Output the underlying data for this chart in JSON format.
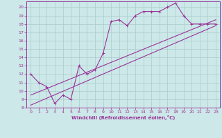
{
  "xlabel": "Windchill (Refroidissement éolien,°C)",
  "bg_color": "#cce8e8",
  "grid_color": "#aacccc",
  "line_color": "#993399",
  "xlim": [
    -0.5,
    23.5
  ],
  "ylim": [
    8,
    20.7
  ],
  "xticks": [
    0,
    1,
    2,
    3,
    4,
    5,
    6,
    7,
    8,
    9,
    10,
    11,
    12,
    13,
    14,
    15,
    16,
    17,
    18,
    19,
    20,
    21,
    22,
    23
  ],
  "yticks": [
    8,
    9,
    10,
    11,
    12,
    13,
    14,
    15,
    16,
    17,
    18,
    19,
    20
  ],
  "line1_x": [
    0,
    1,
    2,
    3,
    4,
    5,
    6,
    7,
    8,
    9,
    10,
    11,
    12,
    13,
    14,
    15,
    16,
    17,
    18,
    19,
    20,
    21,
    22,
    23
  ],
  "line1_y": [
    12,
    11,
    10.5,
    8.5,
    9.5,
    9,
    13,
    12,
    12.5,
    14.5,
    18.3,
    18.5,
    17.8,
    19,
    19.5,
    19.5,
    19.5,
    20,
    20.5,
    19,
    18,
    18,
    18,
    18
  ],
  "line2_x": [
    0,
    23
  ],
  "line2_y": [
    9.5,
    18.5
  ],
  "line3_x": [
    0,
    23
  ],
  "line3_y": [
    8.3,
    17.8
  ],
  "marker": "+"
}
